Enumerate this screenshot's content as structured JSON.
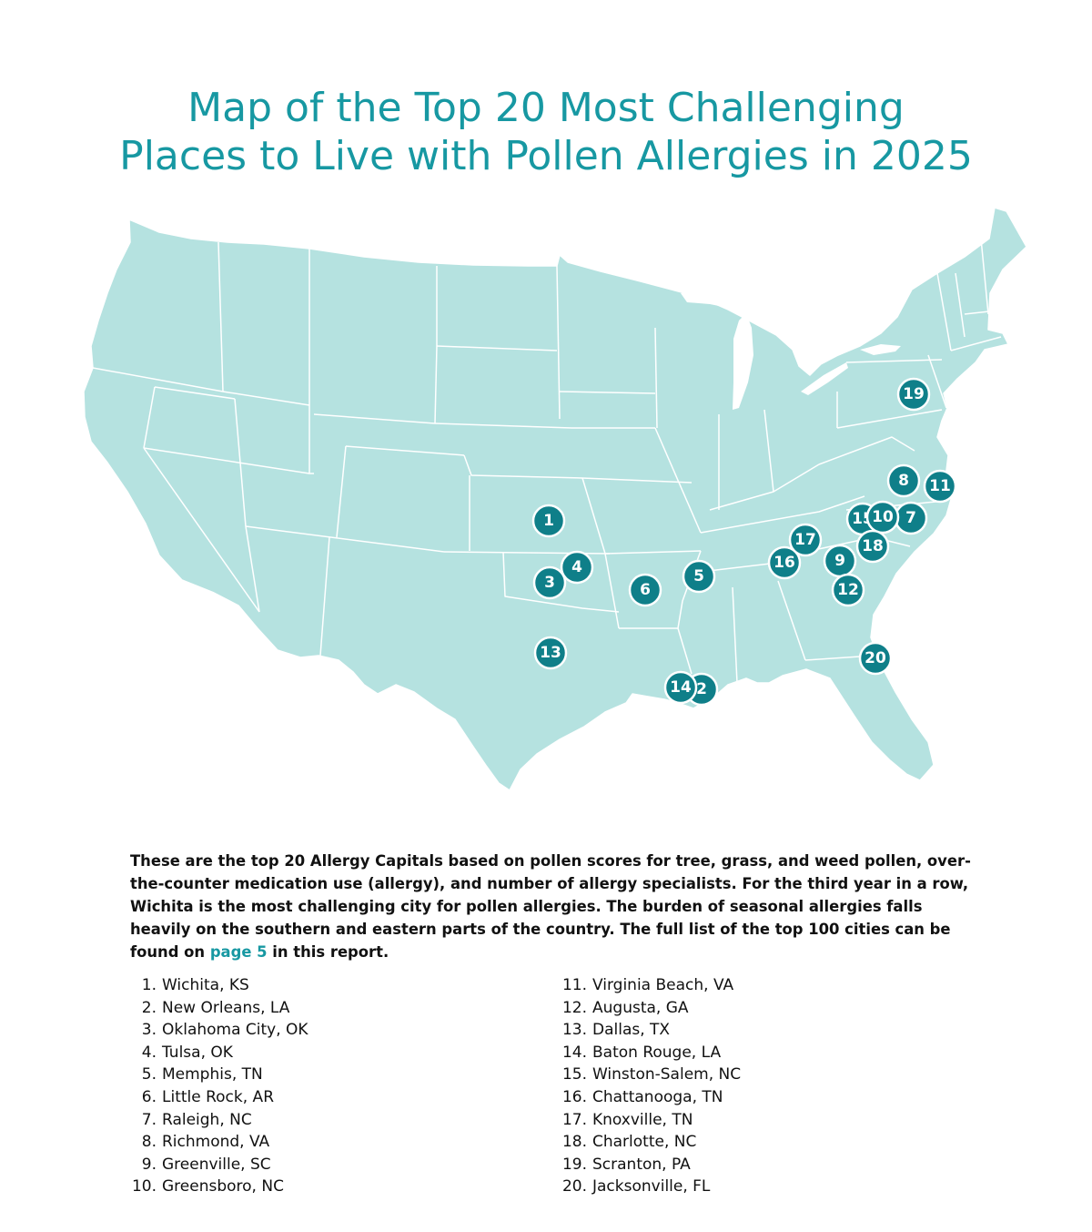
{
  "title": {
    "line1": "Map of the Top 20 Most Challenging",
    "line2": "Places to Live with Pollen Allergies in 2025"
  },
  "colors": {
    "accent": "#1798a2",
    "land": "#b5e2e0",
    "marker": "#0f7f89",
    "border": "#ffffff"
  },
  "markers": [
    {
      "rank": "1",
      "label": "1"
    },
    {
      "rank": "2",
      "label": "2"
    },
    {
      "rank": "3",
      "label": "3"
    },
    {
      "rank": "4",
      "label": "4"
    },
    {
      "rank": "5",
      "label": "5"
    },
    {
      "rank": "6",
      "label": "6"
    },
    {
      "rank": "7",
      "label": "7"
    },
    {
      "rank": "8",
      "label": "8"
    },
    {
      "rank": "9",
      "label": "9"
    },
    {
      "rank": "10",
      "label": "10"
    },
    {
      "rank": "11",
      "label": "11"
    },
    {
      "rank": "12",
      "label": "12"
    },
    {
      "rank": "13",
      "label": "13"
    },
    {
      "rank": "14",
      "label": "14"
    },
    {
      "rank": "15",
      "label": "15"
    },
    {
      "rank": "16",
      "label": "16"
    },
    {
      "rank": "17",
      "label": "17"
    },
    {
      "rank": "18",
      "label": "18"
    },
    {
      "rank": "19",
      "label": "19"
    },
    {
      "rank": "20",
      "label": "20"
    }
  ],
  "description": {
    "text_before": "These are the top 20 Allergy Capitals based on pollen scores for tree, grass, and weed pollen, over-the-counter medication use (allergy), and number of allergy specialists. For the third year in a row, Wichita is the most challenging city for pollen allergies. The burden of seasonal allergies falls heavily on the southern and eastern parts of the country. The full list of the top 100 cities can be found on ",
    "link_text": "page 5",
    "text_after": " in this report."
  },
  "list_left": [
    {
      "num": "1.",
      "city": "Wichita, KS"
    },
    {
      "num": "2.",
      "city": "New Orleans, LA"
    },
    {
      "num": "3.",
      "city": "Oklahoma City, OK"
    },
    {
      "num": "4.",
      "city": "Tulsa, OK"
    },
    {
      "num": "5.",
      "city": "Memphis, TN"
    },
    {
      "num": "6.",
      "city": "Little Rock, AR"
    },
    {
      "num": "7.",
      "city": "Raleigh, NC"
    },
    {
      "num": "8.",
      "city": "Richmond, VA"
    },
    {
      "num": "9.",
      "city": "Greenville, SC"
    },
    {
      "num": "10.",
      "city": "Greensboro, NC"
    }
  ],
  "list_right": [
    {
      "num": "11.",
      "city": "Virginia Beach, VA"
    },
    {
      "num": "12.",
      "city": "Augusta, GA"
    },
    {
      "num": "13.",
      "city": "Dallas, TX"
    },
    {
      "num": "14.",
      "city": "Baton Rouge, LA"
    },
    {
      "num": "15.",
      "city": "Winston-Salem, NC"
    },
    {
      "num": "16.",
      "city": "Chattanooga, TN"
    },
    {
      "num": "17.",
      "city": "Knoxville, TN"
    },
    {
      "num": "18.",
      "city": "Charlotte, NC"
    },
    {
      "num": "19.",
      "city": "Scranton, PA"
    },
    {
      "num": "20.",
      "city": "Jacksonville, FL"
    }
  ]
}
